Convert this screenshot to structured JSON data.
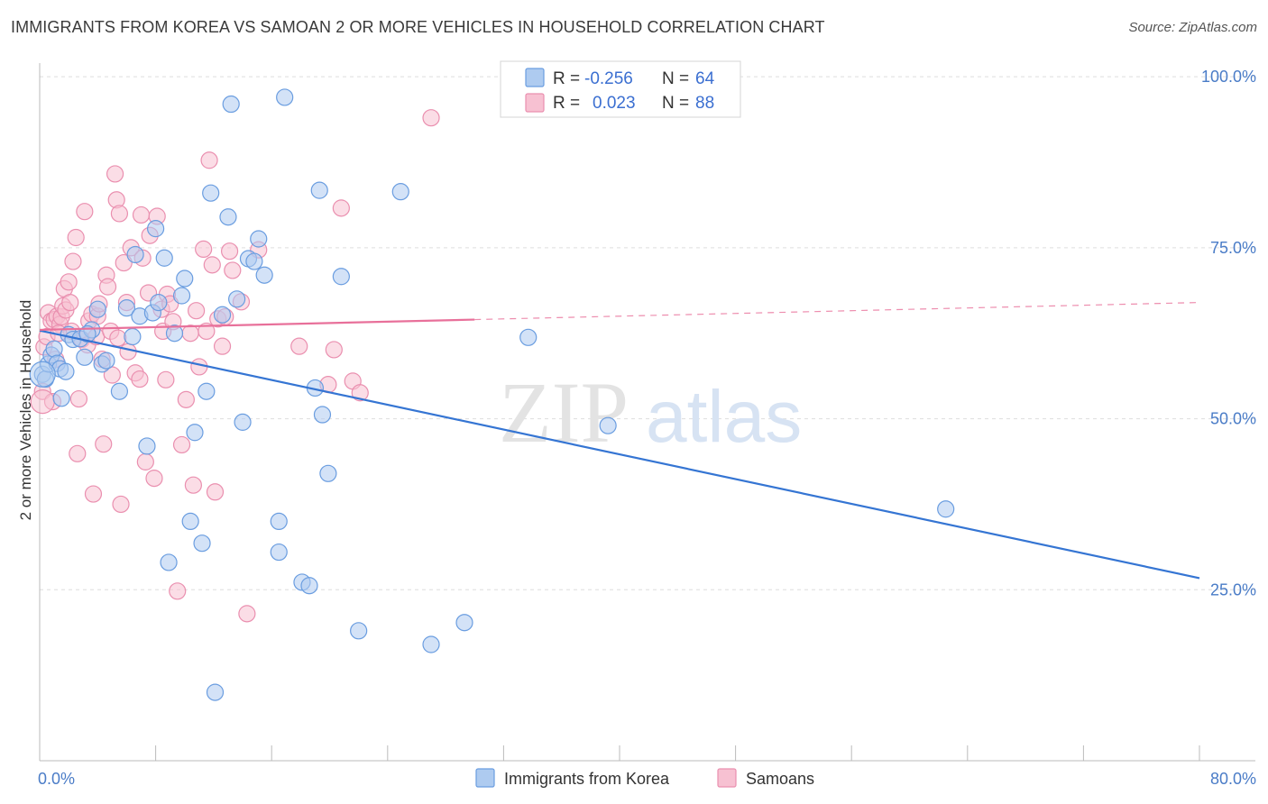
{
  "title": "IMMIGRANTS FROM KOREA VS SAMOAN 2 OR MORE VEHICLES IN HOUSEHOLD CORRELATION CHART",
  "source": "Source: ZipAtlas.com",
  "watermark": {
    "zip": "ZIP",
    "atlas": "atlas"
  },
  "colors": {
    "korea_fill": "#aecbf0",
    "korea_stroke": "#6a9de0",
    "korea_line": "#3575d3",
    "samoa_fill": "#f7c1d2",
    "samoa_stroke": "#ea8faf",
    "samoa_line": "#e8709a",
    "tick": "#4a7cc7",
    "grid": "#dddddd"
  },
  "legend": {
    "rows": [
      {
        "r_label": "R =",
        "r_value": "-0.256",
        "n_label": "N =",
        "n_value": "64"
      },
      {
        "r_label": "R =",
        "r_value": "0.023",
        "n_label": "N =",
        "n_value": "88"
      }
    ]
  },
  "chart_data": {
    "type": "scatter",
    "title": "IMMIGRANTS FROM KOREA VS SAMOAN 2 OR MORE VEHICLES IN HOUSEHOLD CORRELATION CHART",
    "xlabel": "",
    "ylabel": "2 or more Vehicles in Household",
    "xlim": [
      0,
      80
    ],
    "ylim": [
      0,
      102
    ],
    "x_tick_labels": [
      "0.0%",
      "80.0%"
    ],
    "y_ticks": [
      25,
      50,
      75,
      100
    ],
    "y_tick_labels": [
      "25.0%",
      "50.0%",
      "75.0%",
      "100.0%"
    ],
    "grid": true,
    "legend_position": "top-center",
    "series": [
      {
        "name": "Immigrants from Korea",
        "r": -0.256,
        "n": 64,
        "trend": {
          "x": [
            0,
            80
          ],
          "y": [
            62.9,
            26.7
          ],
          "dashed_from": null
        },
        "points": [
          [
            0.2,
            56.5
          ],
          [
            0.4,
            55.8
          ],
          [
            0.6,
            58.0
          ],
          [
            0.8,
            59.3
          ],
          [
            1.0,
            60.2
          ],
          [
            1.2,
            58.1
          ],
          [
            1.4,
            57.3
          ],
          [
            1.8,
            56.9
          ],
          [
            2.0,
            62.3
          ],
          [
            2.3,
            61.6
          ],
          [
            2.8,
            61.7
          ],
          [
            3.1,
            59.0
          ],
          [
            3.6,
            63.0
          ],
          [
            4.0,
            66.0
          ],
          [
            4.3,
            58.0
          ],
          [
            4.6,
            58.5
          ],
          [
            5.5,
            54.0
          ],
          [
            6.0,
            66.2
          ],
          [
            6.4,
            62.0
          ],
          [
            6.6,
            74.0
          ],
          [
            6.9,
            65.0
          ],
          [
            7.4,
            46.0
          ],
          [
            7.8,
            65.5
          ],
          [
            8.0,
            77.8
          ],
          [
            8.2,
            67.0
          ],
          [
            8.6,
            73.5
          ],
          [
            8.9,
            29.0
          ],
          [
            9.3,
            62.5
          ],
          [
            9.8,
            68.0
          ],
          [
            10.0,
            70.5
          ],
          [
            10.4,
            35.0
          ],
          [
            10.7,
            48.0
          ],
          [
            11.2,
            31.8
          ],
          [
            11.5,
            54.0
          ],
          [
            11.8,
            83.0
          ],
          [
            12.1,
            10.0
          ],
          [
            12.6,
            65.2
          ],
          [
            13.0,
            79.5
          ],
          [
            13.2,
            96.0
          ],
          [
            13.6,
            67.5
          ],
          [
            14.0,
            49.5
          ],
          [
            14.4,
            73.4
          ],
          [
            14.8,
            73.0
          ],
          [
            15.1,
            76.3
          ],
          [
            15.5,
            71.0
          ],
          [
            16.5,
            35.0
          ],
          [
            16.5,
            30.5
          ],
          [
            16.9,
            97.0
          ],
          [
            18.1,
            26.1
          ],
          [
            18.6,
            25.6
          ],
          [
            19.0,
            54.5
          ],
          [
            19.3,
            83.4
          ],
          [
            19.5,
            50.6
          ],
          [
            19.9,
            42.0
          ],
          [
            20.8,
            70.8
          ],
          [
            22.0,
            19.0
          ],
          [
            24.9,
            83.2
          ],
          [
            27.0,
            17.0
          ],
          [
            29.3,
            20.2
          ],
          [
            33.7,
            61.9
          ],
          [
            39.2,
            49.0
          ],
          [
            62.5,
            36.8
          ],
          [
            1.5,
            53.0
          ],
          [
            3.3,
            62.4
          ]
        ]
      },
      {
        "name": "Samoans",
        "r": 0.023,
        "n": 88,
        "trend": {
          "x": [
            0,
            80
          ],
          "y": [
            63.0,
            67.0
          ],
          "dashed_from": 30
        },
        "points": [
          [
            0.2,
            54.0
          ],
          [
            0.3,
            60.5
          ],
          [
            0.5,
            62.0
          ],
          [
            0.6,
            65.5
          ],
          [
            0.8,
            64.3
          ],
          [
            1.0,
            64.5
          ],
          [
            1.1,
            58.7
          ],
          [
            1.2,
            65.0
          ],
          [
            1.4,
            63.8
          ],
          [
            1.5,
            64.9
          ],
          [
            1.6,
            66.5
          ],
          [
            1.7,
            69.0
          ],
          [
            1.8,
            65.9
          ],
          [
            2.0,
            70.0
          ],
          [
            2.1,
            67.0
          ],
          [
            2.2,
            62.8
          ],
          [
            2.3,
            73.0
          ],
          [
            2.5,
            76.5
          ],
          [
            2.6,
            44.9
          ],
          [
            2.7,
            52.9
          ],
          [
            2.9,
            61.6
          ],
          [
            3.1,
            80.3
          ],
          [
            3.3,
            60.8
          ],
          [
            3.4,
            64.3
          ],
          [
            3.6,
            65.3
          ],
          [
            3.7,
            39.0
          ],
          [
            3.9,
            62.0
          ],
          [
            4.0,
            65.0
          ],
          [
            4.1,
            66.8
          ],
          [
            4.3,
            58.7
          ],
          [
            4.4,
            46.3
          ],
          [
            4.6,
            71.0
          ],
          [
            4.7,
            69.3
          ],
          [
            4.9,
            62.8
          ],
          [
            5.0,
            56.4
          ],
          [
            5.2,
            85.8
          ],
          [
            5.3,
            82.0
          ],
          [
            5.4,
            61.8
          ],
          [
            5.5,
            80.0
          ],
          [
            5.6,
            37.5
          ],
          [
            5.8,
            72.8
          ],
          [
            6.0,
            67.0
          ],
          [
            6.1,
            59.8
          ],
          [
            6.3,
            75.0
          ],
          [
            6.6,
            56.7
          ],
          [
            6.9,
            55.8
          ],
          [
            7.0,
            79.8
          ],
          [
            7.1,
            73.5
          ],
          [
            7.3,
            43.7
          ],
          [
            7.5,
            68.4
          ],
          [
            7.6,
            76.8
          ],
          [
            7.9,
            41.3
          ],
          [
            8.1,
            79.6
          ],
          [
            8.4,
            66.0
          ],
          [
            8.5,
            62.8
          ],
          [
            8.7,
            55.7
          ],
          [
            8.8,
            68.2
          ],
          [
            9.0,
            66.8
          ],
          [
            9.2,
            64.2
          ],
          [
            9.5,
            24.8
          ],
          [
            9.8,
            46.2
          ],
          [
            10.1,
            52.8
          ],
          [
            10.4,
            62.5
          ],
          [
            10.6,
            40.3
          ],
          [
            10.8,
            65.8
          ],
          [
            11.0,
            57.6
          ],
          [
            11.3,
            74.8
          ],
          [
            11.5,
            62.8
          ],
          [
            11.7,
            87.8
          ],
          [
            11.9,
            72.5
          ],
          [
            12.1,
            39.3
          ],
          [
            12.3,
            64.6
          ],
          [
            12.6,
            60.6
          ],
          [
            12.8,
            64.9
          ],
          [
            13.1,
            74.5
          ],
          [
            13.3,
            71.7
          ],
          [
            13.9,
            67.1
          ],
          [
            14.3,
            21.5
          ],
          [
            15.1,
            74.7
          ],
          [
            17.9,
            60.6
          ],
          [
            19.9,
            55.0
          ],
          [
            20.3,
            60.1
          ],
          [
            20.8,
            80.8
          ],
          [
            21.6,
            55.5
          ],
          [
            22.1,
            53.8
          ],
          [
            27.0,
            94.0
          ],
          [
            0.9,
            52.5
          ],
          [
            1.3,
            62.5
          ]
        ]
      }
    ]
  }
}
